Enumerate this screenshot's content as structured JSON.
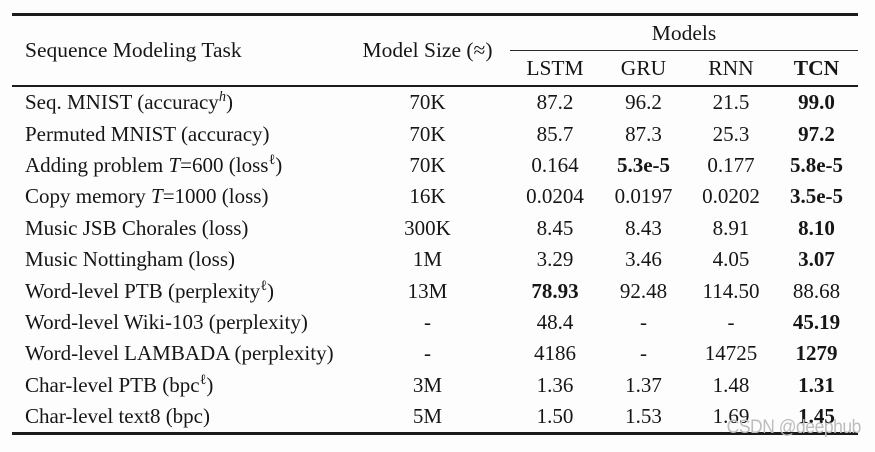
{
  "table": {
    "header": {
      "task": "Sequence Modeling Task",
      "size": "Model Size (≈)",
      "models_group": "Models",
      "model_columns": [
        {
          "label": "LSTM",
          "bold": false
        },
        {
          "label": "GRU",
          "bold": false
        },
        {
          "label": "RNN",
          "bold": false
        },
        {
          "label": "TCN",
          "bold": true
        }
      ]
    },
    "rows": [
      {
        "task": [
          {
            "t": "Seq. MNIST (accuracy"
          },
          {
            "t": "h",
            "sup": true,
            "italic": true
          },
          {
            "t": ")"
          }
        ],
        "size": "70K",
        "values": [
          {
            "t": "87.2"
          },
          {
            "t": "96.2"
          },
          {
            "t": "21.5"
          },
          {
            "t": "99.0",
            "bold": true
          }
        ]
      },
      {
        "task": [
          {
            "t": "Permuted MNIST (accuracy)"
          }
        ],
        "size": "70K",
        "values": [
          {
            "t": "85.7"
          },
          {
            "t": "87.3"
          },
          {
            "t": "25.3"
          },
          {
            "t": "97.2",
            "bold": true
          }
        ]
      },
      {
        "task": [
          {
            "t": "Adding problem "
          },
          {
            "t": "T",
            "italic": true
          },
          {
            "t": "=600 (loss"
          },
          {
            "t": "ℓ",
            "sup": true
          },
          {
            "t": ")"
          }
        ],
        "size": "70K",
        "values": [
          {
            "t": "0.164"
          },
          {
            "t": "5.3e-5",
            "bold": true
          },
          {
            "t": "0.177"
          },
          {
            "t": "5.8e-5",
            "bold": true
          }
        ]
      },
      {
        "task": [
          {
            "t": "Copy memory "
          },
          {
            "t": "T",
            "italic": true
          },
          {
            "t": "=1000 (loss)"
          }
        ],
        "size": "16K",
        "values": [
          {
            "t": "0.0204"
          },
          {
            "t": "0.0197"
          },
          {
            "t": "0.0202"
          },
          {
            "t": "3.5e-5",
            "bold": true
          }
        ]
      },
      {
        "task": [
          {
            "t": "Music JSB Chorales (loss)"
          }
        ],
        "size": "300K",
        "values": [
          {
            "t": "8.45"
          },
          {
            "t": "8.43"
          },
          {
            "t": "8.91"
          },
          {
            "t": "8.10",
            "bold": true
          }
        ]
      },
      {
        "task": [
          {
            "t": "Music Nottingham (loss)"
          }
        ],
        "size": "1M",
        "values": [
          {
            "t": "3.29"
          },
          {
            "t": "3.46"
          },
          {
            "t": "4.05"
          },
          {
            "t": "3.07",
            "bold": true
          }
        ]
      },
      {
        "task": [
          {
            "t": "Word-level PTB (perplexity"
          },
          {
            "t": "ℓ",
            "sup": true
          },
          {
            "t": ")"
          }
        ],
        "size": "13M",
        "values": [
          {
            "t": "78.93",
            "bold": true
          },
          {
            "t": "92.48"
          },
          {
            "t": "114.50"
          },
          {
            "t": "88.68"
          }
        ]
      },
      {
        "task": [
          {
            "t": "Word-level Wiki-103 (perplexity)"
          }
        ],
        "size": "-",
        "values": [
          {
            "t": "48.4"
          },
          {
            "t": "-"
          },
          {
            "t": "-"
          },
          {
            "t": "45.19",
            "bold": true
          }
        ]
      },
      {
        "task": [
          {
            "t": "Word-level LAMBADA (perplexity)"
          }
        ],
        "size": "-",
        "values": [
          {
            "t": "4186"
          },
          {
            "t": "-"
          },
          {
            "t": "14725"
          },
          {
            "t": "1279",
            "bold": true
          }
        ]
      },
      {
        "task": [
          {
            "t": "Char-level PTB (bpc"
          },
          {
            "t": "ℓ",
            "sup": true
          },
          {
            "t": ")"
          }
        ],
        "size": "3M",
        "values": [
          {
            "t": "1.36"
          },
          {
            "t": "1.37"
          },
          {
            "t": "1.48"
          },
          {
            "t": "1.31",
            "bold": true
          }
        ]
      },
      {
        "task": [
          {
            "t": "Char-level text8 (bpc)"
          }
        ],
        "size": "5M",
        "values": [
          {
            "t": "1.50"
          },
          {
            "t": "1.53"
          },
          {
            "t": "1.69"
          },
          {
            "t": "1.45",
            "bold": true
          }
        ]
      }
    ]
  },
  "watermark": "CSDN @deephub",
  "colors": {
    "rule": "#1c1c1c",
    "text": "#161616",
    "watermark": "#bdbdbd",
    "background": "#fdfdfd"
  }
}
